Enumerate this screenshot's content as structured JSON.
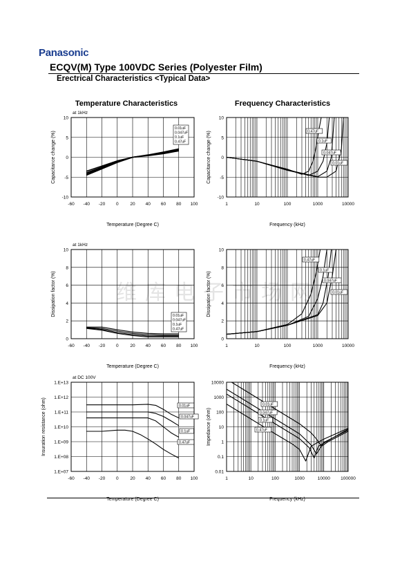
{
  "header": {
    "brand": "Panasonic",
    "title": "ECQV(M) Type 100VDC Series (Polyester Film)",
    "subtitle": "Erectrical Characteristics <Typical Data>",
    "col_left": "Temperature Characteristics",
    "col_right": "Frequency Characteristics"
  },
  "watermark": "维库电子市场网",
  "chart_data": [
    {
      "id": "temp-cap",
      "type": "line",
      "note": "at 1kHz",
      "xlabel": "Temperature (Degree C)",
      "ylabel": "Capacitance change (%)",
      "xscale": "linear",
      "yscale": "linear",
      "xlim": [
        -60,
        100
      ],
      "ylim": [
        -10,
        10
      ],
      "xticks": [
        -60,
        -40,
        -20,
        0,
        20,
        40,
        60,
        80,
        100
      ],
      "xticklabels": [
        "-60",
        "-40",
        "-20",
        "0",
        "20",
        "40",
        "60",
        "80",
        "100"
      ],
      "yticks": [
        -10,
        -5,
        0,
        5,
        10
      ],
      "yticklabels": [
        "-10",
        "-5",
        "0",
        "5",
        "10"
      ],
      "legend_position": "top-right",
      "legend": [
        "0.01uF",
        "0.047uF",
        "0.1uF",
        "0.47uF"
      ],
      "series": [
        {
          "name": "0.01uF",
          "x": [
            -40,
            -20,
            0,
            20,
            40,
            60,
            80
          ],
          "y": [
            -3.5,
            -2.2,
            -0.9,
            0,
            0.6,
            1.3,
            2.1
          ]
        },
        {
          "name": "0.047uF",
          "x": [
            -40,
            -20,
            0,
            20,
            40,
            60,
            80
          ],
          "y": [
            -3.9,
            -2.5,
            -1.1,
            0,
            0.5,
            1.1,
            1.9
          ]
        },
        {
          "name": "0.1uF",
          "x": [
            -40,
            -20,
            0,
            20,
            40,
            60,
            80
          ],
          "y": [
            -4.2,
            -2.7,
            -1.2,
            0,
            0.5,
            1.0,
            1.8
          ]
        },
        {
          "name": "0.47uF",
          "x": [
            -40,
            -20,
            0,
            20,
            40,
            60,
            80
          ],
          "y": [
            -4.5,
            -2.9,
            -1.3,
            0,
            0.4,
            0.9,
            1.6
          ]
        }
      ]
    },
    {
      "id": "freq-cap",
      "type": "line",
      "xlabel": "Frequency (kHz)",
      "ylabel": "Capacitance change (%)",
      "xscale": "log",
      "yscale": "linear",
      "xlim": [
        1,
        10000
      ],
      "ylim": [
        -10,
        10
      ],
      "xticks": [
        1,
        10,
        100,
        1000,
        10000
      ],
      "xticklabels": [
        "1",
        "10",
        "100",
        "1000",
        "10000"
      ],
      "yticks": [
        -10,
        -5,
        0,
        5,
        10
      ],
      "yticklabels": [
        "-10",
        "-5",
        "0",
        "5",
        "10"
      ],
      "legend": [
        "0.47uF",
        "0.1uF",
        "0.047uF",
        "0.01uF"
      ],
      "series": [
        {
          "name": "0.47uF",
          "x": [
            1,
            10,
            100,
            300,
            500,
            700,
            900,
            1100,
            1300
          ],
          "y": [
            0,
            -1.0,
            -3.0,
            -4.3,
            -3.5,
            -1.0,
            3.0,
            7.0,
            10
          ]
        },
        {
          "name": "0.1uF",
          "x": [
            1,
            10,
            100,
            500,
            1000,
            1500,
            2000,
            2400
          ],
          "y": [
            0,
            -1.0,
            -3.1,
            -4.6,
            -3.5,
            -1.0,
            3.5,
            10
          ]
        },
        {
          "name": "0.047uF",
          "x": [
            1,
            10,
            100,
            1000,
            2000,
            2800,
            3500
          ],
          "y": [
            0,
            -1.0,
            -3.2,
            -4.9,
            -3.5,
            0,
            10
          ]
        },
        {
          "name": "0.01uF",
          "x": [
            1,
            10,
            100,
            1000,
            2000,
            4000,
            6000,
            7000
          ],
          "y": [
            0,
            -1.0,
            -3.3,
            -5.0,
            -5.0,
            -3.5,
            2.0,
            10
          ]
        }
      ]
    },
    {
      "id": "temp-df",
      "type": "line",
      "note": "at 1kHz",
      "xlabel": "Temperature (Degree C)",
      "ylabel": "Dissipation factor (%)",
      "xscale": "linear",
      "yscale": "linear",
      "xlim": [
        -60,
        100
      ],
      "ylim": [
        0,
        10
      ],
      "xticks": [
        -60,
        -40,
        -20,
        0,
        20,
        40,
        60,
        80,
        100
      ],
      "xticklabels": [
        "-60",
        "-40",
        "-20",
        "0",
        "20",
        "40",
        "60",
        "80",
        "100"
      ],
      "yticks": [
        0,
        2,
        4,
        6,
        8,
        10
      ],
      "yticklabels": [
        "0",
        "2",
        "4",
        "6",
        "8",
        "10"
      ],
      "legend_position": "right",
      "legend": [
        "0.01uF",
        "0.047uF",
        "0.1uF",
        "0.47uF"
      ],
      "series": [
        {
          "name": "0.01uF",
          "x": [
            -40,
            -20,
            0,
            20,
            40,
            60,
            80
          ],
          "y": [
            1.3,
            1.3,
            1.0,
            0.75,
            0.6,
            0.55,
            0.55
          ]
        },
        {
          "name": "0.047uF",
          "x": [
            -40,
            -20,
            0,
            20,
            40,
            60,
            80
          ],
          "y": [
            1.25,
            1.15,
            0.85,
            0.6,
            0.45,
            0.4,
            0.4
          ]
        },
        {
          "name": "0.1uF",
          "x": [
            -40,
            -20,
            0,
            20,
            40,
            60,
            80
          ],
          "y": [
            1.2,
            1.05,
            0.7,
            0.45,
            0.3,
            0.3,
            0.3
          ]
        },
        {
          "name": "0.47uF",
          "x": [
            -40,
            -20,
            0,
            20,
            40,
            60,
            80
          ],
          "y": [
            1.15,
            0.95,
            0.6,
            0.35,
            0.2,
            0.2,
            0.2
          ]
        }
      ]
    },
    {
      "id": "freq-df",
      "type": "line",
      "xlabel": "Frequency (kHz)",
      "ylabel": "Dissipation factor (%)",
      "xscale": "log",
      "yscale": "linear",
      "xlim": [
        1,
        10000
      ],
      "ylim": [
        0,
        10
      ],
      "xticks": [
        1,
        10,
        100,
        1000,
        10000
      ],
      "xticklabels": [
        "1",
        "10",
        "100",
        "1000",
        "10000"
      ],
      "yticks": [
        0,
        2,
        4,
        6,
        8,
        10
      ],
      "yticklabels": [
        "0",
        "2",
        "4",
        "6",
        "8",
        "10"
      ],
      "legend": [
        "0.47uF",
        "0.1uF",
        "0.047uF",
        "0.01uF"
      ],
      "series": [
        {
          "name": "0.47uF",
          "x": [
            1,
            10,
            100,
            300,
            600,
            900,
            1200
          ],
          "y": [
            0.5,
            0.8,
            1.6,
            2.8,
            5.0,
            7.5,
            10
          ]
        },
        {
          "name": "0.1uF",
          "x": [
            1,
            10,
            100,
            500,
            1000,
            1500,
            2000
          ],
          "y": [
            0.5,
            0.8,
            1.5,
            2.5,
            4.5,
            7.0,
            10
          ]
        },
        {
          "name": "0.047uF",
          "x": [
            1,
            10,
            100,
            1000,
            1500,
            2200,
            2800
          ],
          "y": [
            0.5,
            0.8,
            1.5,
            2.7,
            4.0,
            7.0,
            10
          ]
        },
        {
          "name": "0.01uF",
          "x": [
            1,
            10,
            100,
            1000,
            2000,
            3000,
            4000
          ],
          "y": [
            0.5,
            0.8,
            1.5,
            2.6,
            4.0,
            7.0,
            10
          ]
        }
      ]
    },
    {
      "id": "temp-ir",
      "type": "line",
      "note": "at DC 100V",
      "xlabel": "Temperature (Degree C)",
      "ylabel": "Insuration resistance (ohm)",
      "xscale": "linear",
      "yscale": "log",
      "xlim": [
        -60,
        100
      ],
      "ylim": [
        10000000,
        10000000000000
      ],
      "xticks": [
        -60,
        -40,
        -20,
        0,
        20,
        40,
        60,
        80,
        100
      ],
      "xticklabels": [
        "-60",
        "-40",
        "-20",
        "0",
        "20",
        "40",
        "60",
        "80",
        "100"
      ],
      "yticks": [
        10000000,
        1000000000,
        100000000000,
        10000000000000
      ],
      "yticklabels": [
        "1.E+07",
        "1.E+09",
        "1.E+11",
        "1.E+13"
      ],
      "yminorticks": [
        100000000,
        10000000000,
        1000000000000
      ],
      "yminorticklabels": [
        "1.E+08",
        "1.E+10",
        "1.E+12"
      ],
      "legend": [
        "0.01uF",
        "0.047uF",
        "0.1uF",
        "0.47uF"
      ],
      "series": [
        {
          "name": "0.01uF",
          "x": [
            -40,
            -20,
            0,
            20,
            40,
            50,
            60,
            70,
            80
          ],
          "y": [
            300000000000,
            300000000000,
            300000000000,
            300000000000,
            330000000000,
            280000000000,
            150000000000,
            70000000000,
            40000000000
          ]
        },
        {
          "name": "0.047uF",
          "x": [
            -40,
            -20,
            0,
            20,
            40,
            50,
            60,
            70,
            80
          ],
          "y": [
            100000000000,
            100000000000,
            100000000000,
            100000000000,
            100000000000,
            80000000000,
            50000000000,
            25000000000,
            12000000000
          ]
        },
        {
          "name": "0.1uF",
          "x": [
            -40,
            -20,
            0,
            20,
            40,
            50,
            60,
            70,
            80
          ],
          "y": [
            40000000000,
            40000000000,
            40000000000,
            40000000000,
            40000000000,
            25000000000,
            10000000000,
            4000000000,
            2000000000
          ]
        },
        {
          "name": "0.47uF",
          "x": [
            -40,
            -20,
            0,
            10,
            20,
            30,
            40,
            50,
            60,
            70,
            80
          ],
          "y": [
            5000000000,
            5000000000,
            6000000000,
            6000000000,
            5000000000,
            3000000000,
            1500000000,
            700000000,
            300000000,
            150000000,
            80000000
          ]
        }
      ]
    },
    {
      "id": "freq-z",
      "type": "line",
      "xlabel": "Frequency (kHz)",
      "ylabel": "Impedance (ohm)",
      "xscale": "log",
      "yscale": "log",
      "xlim": [
        1,
        100000
      ],
      "ylim": [
        0.01,
        10000
      ],
      "xticks": [
        1,
        10,
        100,
        1000,
        10000,
        100000
      ],
      "xticklabels": [
        "1",
        "10",
        "100",
        "1000",
        "10000",
        "100000"
      ],
      "yticks": [
        0.01,
        0.1,
        1,
        10,
        100,
        1000,
        10000
      ],
      "yticklabels": [
        "0.01",
        "0.1",
        "1",
        "10",
        "100",
        "1000",
        "10000"
      ],
      "legend": [
        "0.01uF",
        "0.047uF",
        "0.1uF",
        "0.47uF"
      ],
      "series": [
        {
          "name": "0.01uF",
          "x": [
            1,
            10,
            100,
            1000,
            3000,
            5000,
            8000,
            15000,
            100000
          ],
          "y": [
            16000,
            1600,
            160,
            16,
            4,
            1.5,
            0.5,
            1.0,
            5
          ]
        },
        {
          "name": "0.047uF",
          "x": [
            1,
            10,
            100,
            1000,
            3000,
            5000,
            10000,
            100000
          ],
          "y": [
            3400,
            340,
            34,
            3.4,
            0.6,
            0.15,
            0.9,
            6
          ]
        },
        {
          "name": "0.1uF",
          "x": [
            1,
            10,
            100,
            1000,
            2500,
            4000,
            6000,
            100000
          ],
          "y": [
            1600,
            160,
            16,
            1.6,
            0.4,
            0.08,
            0.5,
            7
          ]
        },
        {
          "name": "0.47uF",
          "x": [
            1,
            10,
            100,
            500,
            1000,
            1800,
            3000,
            10000,
            100000
          ],
          "y": [
            340,
            34,
            3.4,
            0.7,
            0.3,
            0.05,
            0.5,
            1.5,
            8
          ]
        }
      ]
    }
  ]
}
